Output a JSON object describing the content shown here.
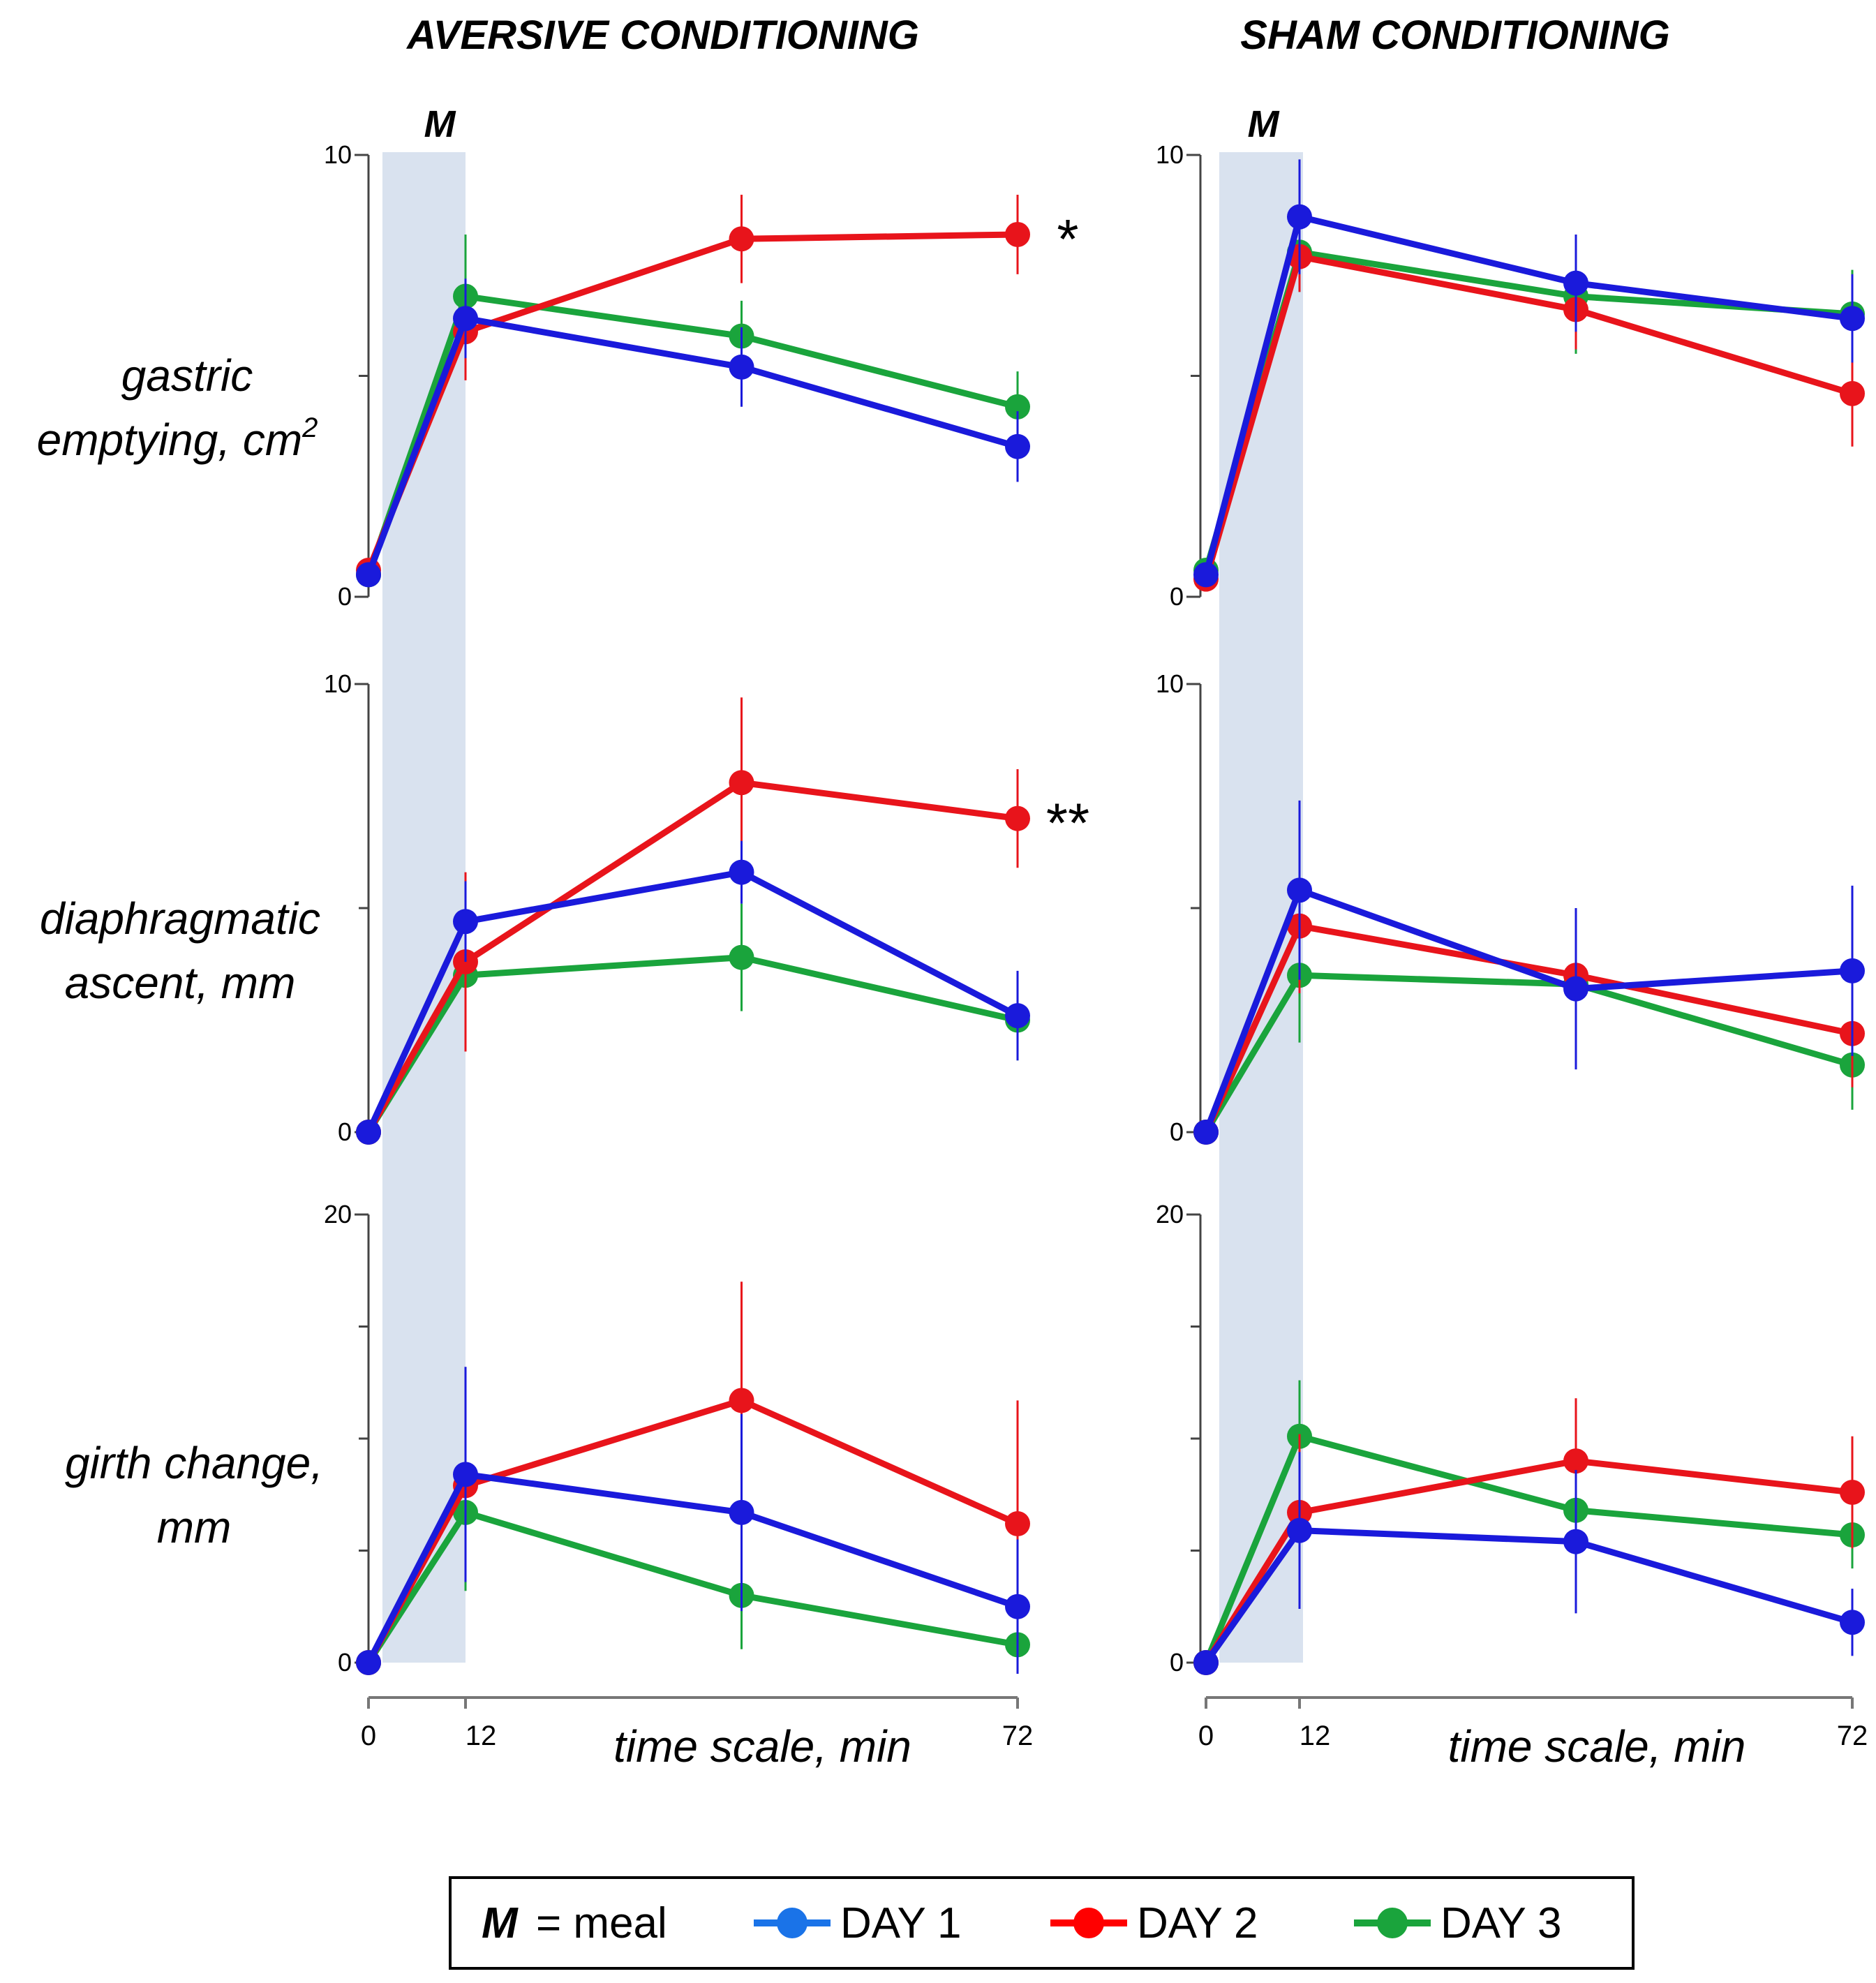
{
  "chart_data": {
    "type": "line",
    "columns": [
      {
        "id": "aversive",
        "title": "AVERSIVE CONDITIONING"
      },
      {
        "id": "sham",
        "title": "SHAM CONDITIONING"
      }
    ],
    "meal_label": "M",
    "meal_interval": [
      0,
      12
    ],
    "x": [
      0,
      12,
      42,
      72
    ],
    "x_range": [
      0,
      72
    ],
    "xtick_labels": [
      "0",
      "12",
      "72"
    ],
    "xtick_values": [
      0,
      12,
      72
    ],
    "xlabel": "time scale, min",
    "rows": [
      {
        "id": "gastric",
        "ylabel_line1": "gastric",
        "ylabel_line2": "emptying, cm",
        "ylabel_sup": "2",
        "ylim": [
          0,
          10
        ],
        "yticks": [
          0,
          10
        ],
        "minor_ticks": [
          5
        ]
      },
      {
        "id": "diaphragm",
        "ylabel_line1": "diaphragmatic",
        "ylabel_line2": "ascent, mm",
        "ylabel_sup": "",
        "ylim": [
          0,
          10
        ],
        "yticks": [
          0,
          10
        ],
        "minor_ticks": [
          5
        ]
      },
      {
        "id": "girth",
        "ylabel_line1": "girth change,",
        "ylabel_line2": "mm",
        "ylabel_sup": "",
        "ylim": [
          0,
          20
        ],
        "yticks": [
          0,
          20
        ],
        "minor_ticks": [
          5,
          10,
          15
        ]
      }
    ],
    "series_info": [
      {
        "id": "day1",
        "name": "DAY 1",
        "color": "#1a1adb"
      },
      {
        "id": "day2",
        "name": "DAY 2",
        "color": "#e8141b"
      },
      {
        "id": "day3",
        "name": "DAY 3",
        "color": "#1aa43c"
      }
    ],
    "panels": [
      {
        "column": "aversive",
        "row": "gastric",
        "significance": "*",
        "series": [
          {
            "id": "day1",
            "values": [
              0.5,
              6.3,
              5.2,
              3.4
            ],
            "errors": [
              0.2,
              0.9,
              0.9,
              0.8
            ]
          },
          {
            "id": "day2",
            "values": [
              0.6,
              6.0,
              8.1,
              8.2
            ],
            "errors": [
              0.2,
              1.1,
              1.0,
              0.9
            ]
          },
          {
            "id": "day3",
            "values": [
              0.5,
              6.8,
              5.9,
              4.3
            ],
            "errors": [
              0.2,
              1.4,
              0.8,
              0.8
            ]
          }
        ]
      },
      {
        "column": "aversive",
        "row": "diaphragm",
        "significance": "**",
        "series": [
          {
            "id": "day1",
            "values": [
              0,
              4.7,
              5.8,
              2.6
            ],
            "errors": [
              0,
              0.9,
              0.7,
              1.0
            ]
          },
          {
            "id": "day2",
            "values": [
              0,
              3.8,
              7.8,
              7.0
            ],
            "errors": [
              0,
              2.0,
              1.9,
              1.1
            ]
          },
          {
            "id": "day3",
            "values": [
              0,
              3.5,
              3.9,
              2.5
            ],
            "errors": [
              0,
              0.6,
              1.2,
              0.9
            ]
          }
        ]
      },
      {
        "column": "aversive",
        "row": "girth",
        "significance": "",
        "series": [
          {
            "id": "day1",
            "values": [
              0,
              8.4,
              6.7,
              2.5
            ],
            "errors": [
              0,
              4.8,
              4.4,
              3.0
            ]
          },
          {
            "id": "day2",
            "values": [
              0,
              7.9,
              11.7,
              6.2
            ],
            "errors": [
              0,
              4.0,
              5.3,
              5.5
            ]
          },
          {
            "id": "day3",
            "values": [
              0,
              6.7,
              3.0,
              0.8
            ],
            "errors": [
              0,
              3.5,
              2.4,
              0.6
            ]
          }
        ]
      },
      {
        "column": "sham",
        "row": "gastric",
        "significance": "",
        "series": [
          {
            "id": "day1",
            "values": [
              0.5,
              8.6,
              7.1,
              6.3
            ],
            "errors": [
              0.2,
              1.3,
              1.1,
              1.0
            ]
          },
          {
            "id": "day2",
            "values": [
              0.4,
              7.7,
              6.5,
              4.6
            ],
            "errors": [
              0.2,
              0.8,
              0.9,
              1.2
            ]
          },
          {
            "id": "day3",
            "values": [
              0.6,
              7.8,
              6.8,
              6.4
            ],
            "errors": [
              0.2,
              0.9,
              1.3,
              1.0
            ]
          }
        ]
      },
      {
        "column": "sham",
        "row": "diaphragm",
        "significance": "",
        "series": [
          {
            "id": "day1",
            "values": [
              0,
              5.4,
              3.2,
              3.6
            ],
            "errors": [
              0,
              2.0,
              1.8,
              1.9
            ]
          },
          {
            "id": "day2",
            "values": [
              0,
              4.6,
              3.5,
              2.2
            ],
            "errors": [
              0,
              1.5,
              1.5,
              1.2
            ]
          },
          {
            "id": "day3",
            "values": [
              0,
              3.5,
              3.3,
              1.5
            ],
            "errors": [
              0,
              1.5,
              1.5,
              1.0
            ]
          }
        ]
      },
      {
        "column": "sham",
        "row": "girth",
        "significance": "",
        "series": [
          {
            "id": "day1",
            "values": [
              0,
              5.9,
              5.4,
              1.8
            ],
            "errors": [
              0,
              3.5,
              3.2,
              1.5
            ]
          },
          {
            "id": "day2",
            "values": [
              0,
              6.7,
              9.0,
              7.6
            ],
            "errors": [
              0,
              3.5,
              2.8,
              2.5
            ]
          },
          {
            "id": "day3",
            "values": [
              0,
              10.1,
              6.8,
              5.7
            ],
            "errors": [
              0,
              2.5,
              2.0,
              1.5
            ]
          }
        ]
      }
    ],
    "legend": {
      "meal_symbol": "M",
      "meal_text": "= meal",
      "entries": [
        "DAY 1",
        "DAY 2",
        "DAY 3"
      ],
      "colors": [
        "#1a73e8",
        "#ff0000",
        "#1aa43c"
      ]
    }
  }
}
